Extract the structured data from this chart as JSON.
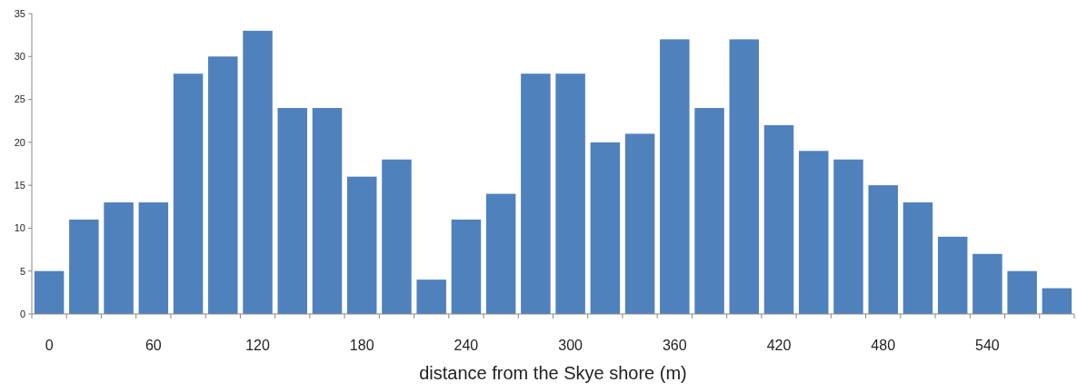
{
  "chart_data": {
    "type": "bar",
    "xlabel": "distance from the Skye shore (m)",
    "categories": [
      "0",
      null,
      null,
      "60",
      null,
      null,
      "120",
      null,
      null,
      "180",
      null,
      null,
      "240",
      null,
      null,
      "300",
      null,
      null,
      "360",
      null,
      null,
      "420",
      null,
      null,
      "480",
      null,
      null,
      "540",
      null,
      null
    ],
    "values": [
      5,
      11,
      13,
      13,
      28,
      30,
      33,
      24,
      24,
      16,
      18,
      4,
      11,
      14,
      28,
      28,
      20,
      21,
      32,
      24,
      32,
      22,
      19,
      18,
      15,
      13,
      9,
      7,
      5,
      3
    ],
    "color": "#4f81bd",
    "ylim": [
      0,
      35
    ],
    "yticks": [
      0,
      5,
      10,
      15,
      20,
      25,
      30,
      35
    ],
    "grid": false
  }
}
